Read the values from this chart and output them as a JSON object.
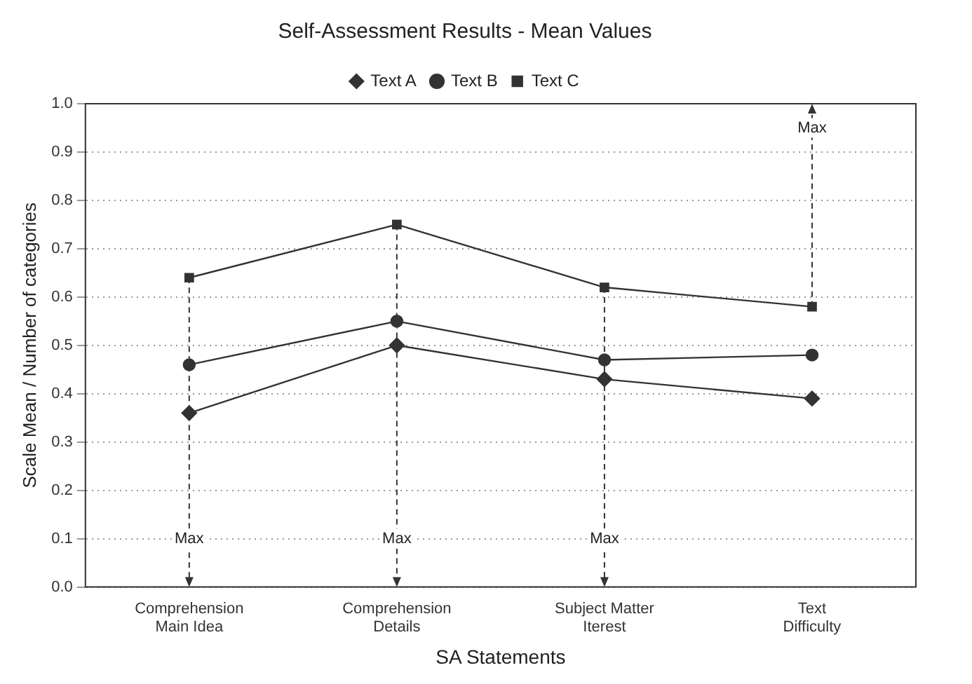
{
  "chart_data": {
    "type": "line",
    "title": "Self-Assessment Results - Mean Values",
    "xlabel": "SA Statements",
    "ylabel": "Scale Mean / Number of categories",
    "categories": [
      "Comprehension\nMain Idea",
      "Comprehension\nDetails",
      "Subject Matter\nIterest",
      "Text\nDifficulty"
    ],
    "series": [
      {
        "name": "Text A",
        "color": "#333333",
        "marker": "diamond",
        "values": [
          0.36,
          0.5,
          0.43,
          0.39
        ]
      },
      {
        "name": "Text B",
        "color": "#333333",
        "marker": "circle",
        "values": [
          0.46,
          0.55,
          0.47,
          0.48
        ]
      },
      {
        "name": "Text C",
        "color": "#333333",
        "marker": "square",
        "values": [
          0.64,
          0.75,
          0.62,
          0.58
        ]
      }
    ],
    "ylim": [
      0,
      1
    ],
    "yticks": [
      {
        "value": 0,
        "label": "0.0"
      },
      0.1,
      0.2,
      0.3,
      0.4,
      0.5,
      0.6,
      0.7,
      0.8,
      0.9,
      {
        "value": 1,
        "label": "1.0"
      }
    ],
    "grid": "y",
    "legend": "top",
    "line_style": "solid",
    "annotations": [
      {
        "text": "Max",
        "x": "Comprehension\nMain Idea",
        "y": 0.1
      },
      {
        "text": "Max",
        "x": "Comprehension\nDetails",
        "y": 0.1
      },
      {
        "text": "Max",
        "x": "Subject Matter\nIterest",
        "y": 0.1
      },
      {
        "text": "Max",
        "x": "Text\nDifficulty",
        "y": 0.95
      }
    ]
  }
}
